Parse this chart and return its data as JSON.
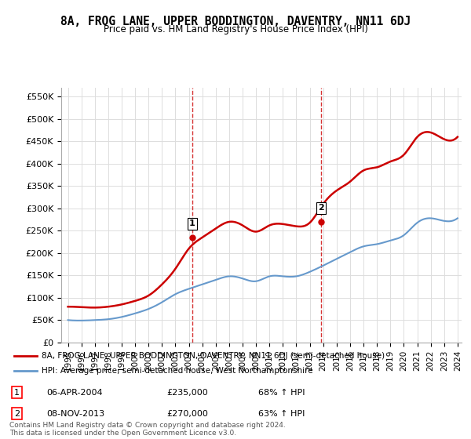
{
  "title": "8A, FROG LANE, UPPER BODDINGTON, DAVENTRY, NN11 6DJ",
  "subtitle": "Price paid vs. HM Land Registry's House Price Index (HPI)",
  "years": [
    1995,
    1996,
    1997,
    1998,
    1999,
    2000,
    2001,
    2002,
    2003,
    2004,
    2005,
    2006,
    2007,
    2008,
    2009,
    2010,
    2011,
    2012,
    2013,
    2014,
    2015,
    2016,
    2017,
    2018,
    2019,
    2020,
    2021,
    2022,
    2023,
    2024
  ],
  "hpi_values": [
    50000,
    49000,
    50000,
    52000,
    57000,
    65000,
    75000,
    90000,
    108000,
    120000,
    130000,
    140000,
    148000,
    143000,
    137000,
    148000,
    148000,
    148000,
    158000,
    172000,
    187000,
    202000,
    215000,
    220000,
    228000,
    240000,
    268000,
    278000,
    272000,
    278000
  ],
  "property_values": [
    80000,
    79000,
    78000,
    80000,
    85000,
    93000,
    105000,
    130000,
    165000,
    210000,
    235000,
    255000,
    270000,
    262000,
    248000,
    262000,
    265000,
    260000,
    268000,
    310000,
    340000,
    360000,
    385000,
    392000,
    405000,
    420000,
    460000,
    470000,
    455000,
    460000
  ],
  "sale1_year": 2004.25,
  "sale1_price": 235000,
  "sale2_year": 2013.85,
  "sale2_price": 270000,
  "sale1_label": "1",
  "sale2_label": "2",
  "property_color": "#cc0000",
  "hpi_color": "#6699cc",
  "vline_color": "#cc0000",
  "ylim": [
    0,
    570000
  ],
  "yticks": [
    0,
    50000,
    100000,
    150000,
    200000,
    250000,
    300000,
    350000,
    400000,
    450000,
    500000,
    550000
  ],
  "xlabel_years": [
    1995,
    1996,
    1997,
    1998,
    1999,
    2000,
    2001,
    2002,
    2003,
    2004,
    2005,
    2006,
    2007,
    2008,
    2009,
    2010,
    2011,
    2012,
    2013,
    2014,
    2015,
    2016,
    2017,
    2018,
    2019,
    2020,
    2021,
    2022,
    2023,
    2024
  ],
  "legend_property": "8A, FROG LANE, UPPER BODDINGTON, DAVENTRY, NN11 6DJ (semi-detached house)",
  "legend_hpi": "HPI: Average price, semi-detached house, West Northamptonshire",
  "table_row1": [
    "1",
    "06-APR-2004",
    "£235,000",
    "68% ↑ HPI"
  ],
  "table_row2": [
    "2",
    "08-NOV-2013",
    "£270,000",
    "63% ↑ HPI"
  ],
  "footer": "Contains HM Land Registry data © Crown copyright and database right 2024.\nThis data is licensed under the Open Government Licence v3.0.",
  "bg_color": "#ffffff",
  "grid_color": "#dddddd"
}
